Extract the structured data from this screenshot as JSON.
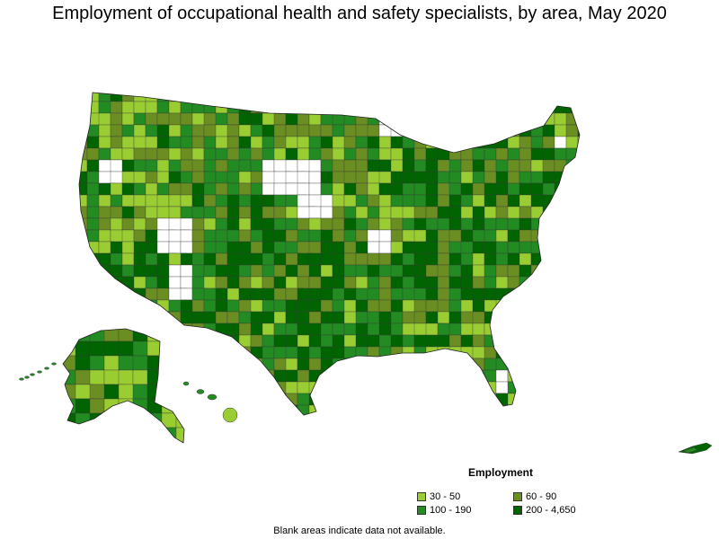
{
  "title": "Employment of occupational health and safety specialists, by area, May 2020",
  "legend": {
    "title": "Employment",
    "items": [
      {
        "label": "30 - 50",
        "color": "#9acd32"
      },
      {
        "label": "60 - 90",
        "color": "#6b8e23"
      },
      {
        "label": "100 - 190",
        "color": "#228b22"
      },
      {
        "label": "200 - 4,650",
        "color": "#006400"
      }
    ]
  },
  "note": "Blank areas indicate data not available.",
  "colors": {
    "border": "#3a3a3a",
    "no_data": "#ffffff",
    "tier1": "#9acd32",
    "tier2": "#6b8e23",
    "tier3": "#228b22",
    "tier4": "#006400"
  }
}
